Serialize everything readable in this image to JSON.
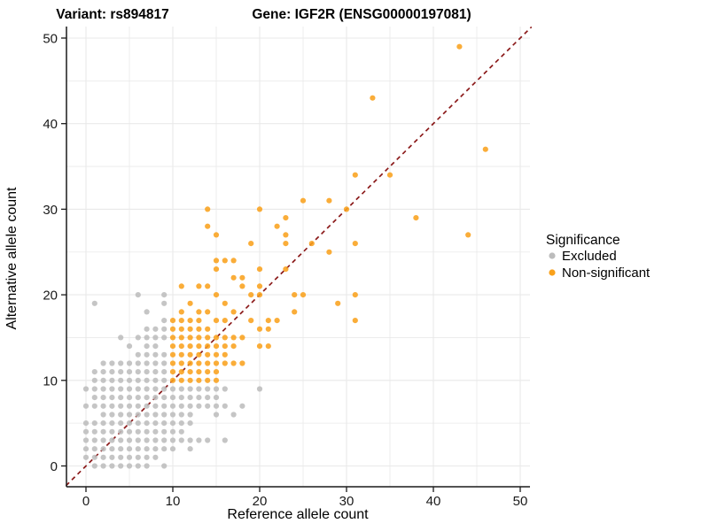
{
  "header": {
    "variant_title": "Variant: rs894817",
    "gene_title": "Gene: IGF2R (ENSG00000197081)"
  },
  "axes": {
    "xlabel": "Reference allele count",
    "ylabel": "Alternative allele count",
    "xticks": [
      "0",
      "10",
      "20",
      "30",
      "40",
      "50"
    ],
    "xtick_values": [
      0,
      10,
      20,
      30,
      40,
      50
    ],
    "yticks": [
      "0",
      "10",
      "20",
      "30",
      "40",
      "50"
    ],
    "ytick_values": [
      0,
      10,
      20,
      30,
      40,
      50
    ],
    "xlim": [
      -2.3,
      51.3
    ],
    "ylim": [
      -2.3,
      51.3
    ],
    "grid": "on",
    "grid_step": 5
  },
  "legend": {
    "title": "Significance",
    "position": "right",
    "items": [
      {
        "label": "Excluded",
        "color": "#BCBCBC"
      },
      {
        "label": "Non-significant",
        "color": "#F9A11B"
      }
    ]
  },
  "colors": {
    "excluded": "#BCBCBC",
    "non_significant": "#F9A11B",
    "identity_line": "#8B1A1A",
    "grid": "#E9E9E9",
    "axis": "#1A1A1A",
    "background": "#FFFFFF"
  },
  "chart_data": {
    "type": "scatter",
    "xlabel": "Reference allele count",
    "ylabel": "Alternative allele count",
    "xlim": [
      -2.3,
      51.3
    ],
    "ylim": [
      -2.3,
      51.3
    ],
    "legend_position": "right",
    "identity_line": {
      "type": "y=x",
      "linestyle": "dashed",
      "color": "#8B1A1A"
    },
    "series": [
      {
        "name": "Excluded",
        "color": "#BCBCBC",
        "points": [
          [
            1,
            0
          ],
          [
            2,
            0
          ],
          [
            3,
            0
          ],
          [
            4,
            0
          ],
          [
            5,
            0
          ],
          [
            6,
            0
          ],
          [
            7,
            0
          ],
          [
            9,
            0
          ],
          [
            0,
            1
          ],
          [
            1,
            1
          ],
          [
            2,
            1
          ],
          [
            3,
            1
          ],
          [
            4,
            1
          ],
          [
            5,
            1
          ],
          [
            6,
            1
          ],
          [
            7,
            1
          ],
          [
            8,
            1
          ],
          [
            0,
            2
          ],
          [
            1,
            2
          ],
          [
            2,
            2
          ],
          [
            3,
            2
          ],
          [
            4,
            2
          ],
          [
            5,
            2
          ],
          [
            6,
            2
          ],
          [
            7,
            2
          ],
          [
            8,
            2
          ],
          [
            9,
            2
          ],
          [
            10,
            2
          ],
          [
            12,
            2
          ],
          [
            0,
            3
          ],
          [
            1,
            3
          ],
          [
            2,
            3
          ],
          [
            3,
            3
          ],
          [
            4,
            3
          ],
          [
            5,
            3
          ],
          [
            6,
            3
          ],
          [
            7,
            3
          ],
          [
            8,
            3
          ],
          [
            9,
            3
          ],
          [
            10,
            3
          ],
          [
            11,
            3
          ],
          [
            12,
            3
          ],
          [
            13,
            3
          ],
          [
            14,
            3
          ],
          [
            16,
            3
          ],
          [
            0,
            4
          ],
          [
            1,
            4
          ],
          [
            2,
            4
          ],
          [
            3,
            4
          ],
          [
            4,
            4
          ],
          [
            5,
            4
          ],
          [
            6,
            4
          ],
          [
            7,
            4
          ],
          [
            8,
            4
          ],
          [
            9,
            4
          ],
          [
            10,
            4
          ],
          [
            11,
            4
          ],
          [
            0,
            5
          ],
          [
            1,
            5
          ],
          [
            2,
            5
          ],
          [
            3,
            5
          ],
          [
            4,
            5
          ],
          [
            5,
            5
          ],
          [
            6,
            5
          ],
          [
            7,
            5
          ],
          [
            8,
            5
          ],
          [
            9,
            5
          ],
          [
            10,
            5
          ],
          [
            11,
            5
          ],
          [
            12,
            5
          ],
          [
            2,
            6
          ],
          [
            3,
            6
          ],
          [
            4,
            6
          ],
          [
            5,
            6
          ],
          [
            6,
            6
          ],
          [
            7,
            6
          ],
          [
            8,
            6
          ],
          [
            9,
            6
          ],
          [
            10,
            6
          ],
          [
            11,
            6
          ],
          [
            12,
            6
          ],
          [
            15,
            6
          ],
          [
            17,
            6
          ],
          [
            0,
            7
          ],
          [
            1,
            7
          ],
          [
            2,
            7
          ],
          [
            3,
            7
          ],
          [
            4,
            7
          ],
          [
            5,
            7
          ],
          [
            6,
            7
          ],
          [
            7,
            7
          ],
          [
            8,
            7
          ],
          [
            9,
            7
          ],
          [
            10,
            7
          ],
          [
            11,
            7
          ],
          [
            12,
            7
          ],
          [
            13,
            7
          ],
          [
            14,
            7
          ],
          [
            15,
            7
          ],
          [
            16,
            7
          ],
          [
            18,
            7
          ],
          [
            1,
            8
          ],
          [
            2,
            8
          ],
          [
            3,
            8
          ],
          [
            4,
            8
          ],
          [
            5,
            8
          ],
          [
            6,
            8
          ],
          [
            7,
            8
          ],
          [
            8,
            8
          ],
          [
            9,
            8
          ],
          [
            10,
            8
          ],
          [
            11,
            8
          ],
          [
            12,
            8
          ],
          [
            13,
            8
          ],
          [
            14,
            8
          ],
          [
            15,
            8
          ],
          [
            0,
            9
          ],
          [
            1,
            9
          ],
          [
            2,
            9
          ],
          [
            3,
            9
          ],
          [
            4,
            9
          ],
          [
            5,
            9
          ],
          [
            6,
            9
          ],
          [
            7,
            9
          ],
          [
            8,
            9
          ],
          [
            9,
            9
          ],
          [
            10,
            9
          ],
          [
            11,
            9
          ],
          [
            12,
            9
          ],
          [
            13,
            9
          ],
          [
            14,
            9
          ],
          [
            15,
            9
          ],
          [
            16,
            9
          ],
          [
            20,
            9
          ],
          [
            1,
            10
          ],
          [
            2,
            10
          ],
          [
            3,
            10
          ],
          [
            4,
            10
          ],
          [
            5,
            10
          ],
          [
            6,
            10
          ],
          [
            7,
            10
          ],
          [
            8,
            10
          ],
          [
            9,
            10
          ],
          [
            1,
            11
          ],
          [
            2,
            11
          ],
          [
            3,
            11
          ],
          [
            4,
            11
          ],
          [
            5,
            11
          ],
          [
            6,
            11
          ],
          [
            7,
            11
          ],
          [
            8,
            11
          ],
          [
            9,
            11
          ],
          [
            2,
            12
          ],
          [
            3,
            12
          ],
          [
            4,
            12
          ],
          [
            5,
            12
          ],
          [
            6,
            12
          ],
          [
            7,
            12
          ],
          [
            8,
            12
          ],
          [
            9,
            12
          ],
          [
            6,
            13
          ],
          [
            7,
            13
          ],
          [
            8,
            13
          ],
          [
            9,
            13
          ],
          [
            5,
            14
          ],
          [
            7,
            14
          ],
          [
            8,
            14
          ],
          [
            4,
            15
          ],
          [
            6,
            15
          ],
          [
            7,
            15
          ],
          [
            8,
            15
          ],
          [
            9,
            15
          ],
          [
            7,
            16
          ],
          [
            8,
            16
          ],
          [
            9,
            16
          ],
          [
            9,
            17
          ],
          [
            7,
            18
          ],
          [
            1,
            19
          ],
          [
            9,
            19
          ],
          [
            6,
            20
          ],
          [
            9,
            20
          ]
        ]
      },
      {
        "name": "Non-significant",
        "color": "#F9A11B",
        "points": [
          [
            10,
            10
          ],
          [
            11,
            10
          ],
          [
            12,
            10
          ],
          [
            13,
            10
          ],
          [
            14,
            10
          ],
          [
            15,
            10
          ],
          [
            10,
            11
          ],
          [
            11,
            11
          ],
          [
            12,
            11
          ],
          [
            13,
            11
          ],
          [
            14,
            11
          ],
          [
            15,
            11
          ],
          [
            10,
            12
          ],
          [
            11,
            12
          ],
          [
            12,
            12
          ],
          [
            13,
            12
          ],
          [
            14,
            12
          ],
          [
            15,
            12
          ],
          [
            16,
            12
          ],
          [
            17,
            12
          ],
          [
            18,
            12
          ],
          [
            10,
            13
          ],
          [
            11,
            13
          ],
          [
            12,
            13
          ],
          [
            13,
            13
          ],
          [
            14,
            13
          ],
          [
            15,
            13
          ],
          [
            16,
            13
          ],
          [
            10,
            14
          ],
          [
            11,
            14
          ],
          [
            12,
            14
          ],
          [
            13,
            14
          ],
          [
            14,
            14
          ],
          [
            15,
            14
          ],
          [
            16,
            14
          ],
          [
            17,
            14
          ],
          [
            20,
            14
          ],
          [
            21,
            14
          ],
          [
            10,
            15
          ],
          [
            11,
            15
          ],
          [
            12,
            15
          ],
          [
            13,
            15
          ],
          [
            14,
            15
          ],
          [
            15,
            15
          ],
          [
            16,
            15
          ],
          [
            17,
            15
          ],
          [
            18,
            15
          ],
          [
            10,
            16
          ],
          [
            11,
            16
          ],
          [
            12,
            16
          ],
          [
            13,
            16
          ],
          [
            14,
            16
          ],
          [
            20,
            16
          ],
          [
            21,
            16
          ],
          [
            10,
            17
          ],
          [
            11,
            17
          ],
          [
            12,
            17
          ],
          [
            13,
            17
          ],
          [
            15,
            17
          ],
          [
            16,
            17
          ],
          [
            19,
            17
          ],
          [
            21,
            17
          ],
          [
            22,
            17
          ],
          [
            31,
            17
          ],
          [
            11,
            18
          ],
          [
            13,
            18
          ],
          [
            14,
            18
          ],
          [
            17,
            18
          ],
          [
            24,
            18
          ],
          [
            12,
            19
          ],
          [
            16,
            19
          ],
          [
            29,
            19
          ],
          [
            15,
            20
          ],
          [
            19,
            20
          ],
          [
            20,
            20
          ],
          [
            24,
            20
          ],
          [
            25,
            20
          ],
          [
            31,
            20
          ],
          [
            11,
            21
          ],
          [
            13,
            21
          ],
          [
            14,
            21
          ],
          [
            18,
            21
          ],
          [
            20,
            21
          ],
          [
            17,
            22
          ],
          [
            18,
            22
          ],
          [
            15,
            23
          ],
          [
            20,
            23
          ],
          [
            23,
            23
          ],
          [
            15,
            24
          ],
          [
            16,
            24
          ],
          [
            17,
            24
          ],
          [
            28,
            25
          ],
          [
            19,
            26
          ],
          [
            23,
            26
          ],
          [
            26,
            26
          ],
          [
            31,
            26
          ],
          [
            15,
            27
          ],
          [
            23,
            27
          ],
          [
            44,
            27
          ],
          [
            14,
            28
          ],
          [
            22,
            28
          ],
          [
            23,
            29
          ],
          [
            38,
            29
          ],
          [
            14,
            30
          ],
          [
            20,
            30
          ],
          [
            30,
            30
          ],
          [
            25,
            31
          ],
          [
            28,
            31
          ],
          [
            31,
            34
          ],
          [
            35,
            34
          ],
          [
            46,
            37
          ],
          [
            33,
            43
          ],
          [
            43,
            49
          ]
        ]
      }
    ]
  }
}
